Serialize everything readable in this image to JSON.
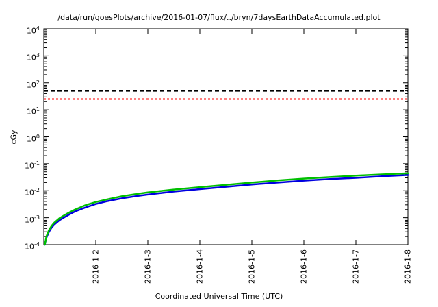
{
  "chart_data": {
    "type": "line",
    "title": "/data/run/goesPlots/archive/2016-01-07/flux/../bryn/7daysEarthDataAccumulated.plot",
    "xlabel": "Coordinated Universal Time (UTC)",
    "ylabel": "cGy",
    "y_scale": "log",
    "y_min_exp": -4,
    "y_max_exp": 4,
    "y_tick_exponents": [
      4,
      3,
      2,
      1,
      0,
      -1,
      -2,
      -3,
      -4
    ],
    "x_span_days": 7,
    "x_ticks": [
      {
        "day": 1,
        "label": "2016-1-2"
      },
      {
        "day": 2,
        "label": "2016-1-3"
      },
      {
        "day": 3,
        "label": "2016-1-4"
      },
      {
        "day": 4,
        "label": "2016-1-5"
      },
      {
        "day": 5,
        "label": "2016-1-6"
      },
      {
        "day": 6,
        "label": "2016-1-7"
      },
      {
        "day": 7,
        "label": "2016-1-8"
      }
    ],
    "thresholds": [
      {
        "name": "limit-line-black",
        "style": "dashed",
        "dash": "6,4",
        "width": 2,
        "color": "#000000",
        "value_cgy": 50
      },
      {
        "name": "limit-line-red",
        "style": "dashed",
        "dash": "3,3",
        "width": 2,
        "color": "#ff0000",
        "value_cgy": 25
      }
    ],
    "series": [
      {
        "name": "accumulated-dose-blue",
        "color": "#0000e0",
        "width": 2.5,
        "points_day_cgy": [
          [
            0.02,
            0.0001
          ],
          [
            0.05,
            0.00018
          ],
          [
            0.1,
            0.0003
          ],
          [
            0.15,
            0.00043
          ],
          [
            0.2,
            0.00055
          ],
          [
            0.3,
            0.0008
          ],
          [
            0.4,
            0.00105
          ],
          [
            0.5,
            0.00135
          ],
          [
            0.6,
            0.0017
          ],
          [
            0.8,
            0.0024
          ],
          [
            1.0,
            0.0032
          ],
          [
            1.2,
            0.004
          ],
          [
            1.5,
            0.0052
          ],
          [
            1.8,
            0.0064
          ],
          [
            2.0,
            0.0072
          ],
          [
            2.5,
            0.0093
          ],
          [
            3.0,
            0.0114
          ],
          [
            3.5,
            0.0139
          ],
          [
            4.0,
            0.017
          ],
          [
            4.5,
            0.02
          ],
          [
            5.0,
            0.0235
          ],
          [
            5.5,
            0.027
          ],
          [
            6.0,
            0.03
          ],
          [
            6.5,
            0.034
          ],
          [
            7.0,
            0.038
          ]
        ]
      },
      {
        "name": "accumulated-dose-green",
        "color": "#00bf00",
        "width": 2.5,
        "points_day_cgy": [
          [
            0.02,
            0.0001
          ],
          [
            0.05,
            0.0002
          ],
          [
            0.1,
            0.00035
          ],
          [
            0.15,
            0.0005
          ],
          [
            0.2,
            0.00065
          ],
          [
            0.3,
            0.00095
          ],
          [
            0.4,
            0.00125
          ],
          [
            0.5,
            0.0016
          ],
          [
            0.6,
            0.002
          ],
          [
            0.8,
            0.0029
          ],
          [
            1.0,
            0.0038
          ],
          [
            1.2,
            0.0047
          ],
          [
            1.5,
            0.0062
          ],
          [
            1.8,
            0.0076
          ],
          [
            2.0,
            0.0086
          ],
          [
            2.5,
            0.011
          ],
          [
            3.0,
            0.0135
          ],
          [
            3.5,
            0.0165
          ],
          [
            4.0,
            0.02
          ],
          [
            4.5,
            0.024
          ],
          [
            5.0,
            0.028
          ],
          [
            5.5,
            0.032
          ],
          [
            6.0,
            0.036
          ],
          [
            6.5,
            0.04
          ],
          [
            7.0,
            0.044
          ]
        ]
      }
    ],
    "axis_color": "#000000",
    "background_color": "#ffffff",
    "legend": "none",
    "grid": "off"
  }
}
